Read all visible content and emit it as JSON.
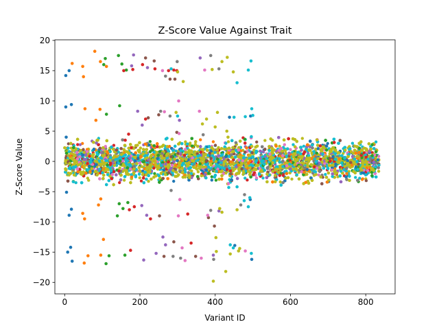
{
  "chart_data": {
    "type": "scatter",
    "title": "Z-Score Value Against Trait",
    "xlabel": "Variant ID",
    "ylabel": "Z-Score Value",
    "xlim": [
      -26,
      878
    ],
    "ylim": [
      -21.9,
      20.1
    ],
    "x_ticks": [
      0,
      200,
      400,
      600,
      800
    ],
    "x_tick_labels": [
      "0",
      "200",
      "400",
      "600",
      "800"
    ],
    "y_ticks": [
      -20,
      -15,
      -10,
      -5,
      0,
      5,
      10,
      15,
      20
    ],
    "y_tick_labels": [
      "−20",
      "−15",
      "−10",
      "−5",
      "0",
      "5",
      "10",
      "15",
      "20"
    ],
    "grid": false,
    "legend": "none",
    "colors": [
      "#1f77b4",
      "#ff7f0e",
      "#2ca02c",
      "#d62728",
      "#9467bd",
      "#8c564b",
      "#e377c2",
      "#7f7f7f",
      "#bcbd22",
      "#17becf"
    ],
    "dense_band": {
      "description": "thousands of overlapping points from many series",
      "x_range": [
        0,
        835
      ],
      "y_range": [
        -4,
        4
      ],
      "approx_point_count": 9000
    },
    "series": [
      {
        "points": [
          [
            3,
            14.2
          ],
          [
            3,
            9.0
          ],
          [
            4,
            4.0
          ],
          [
            12,
            15.0
          ],
          [
            18,
            9.4
          ],
          [
            18,
            -7.9
          ],
          [
            12,
            -8.9
          ],
          [
            5,
            -5.1
          ],
          [
            8,
            -15.0
          ],
          [
            16,
            -14.2
          ],
          [
            20,
            -16.5
          ],
          [
            494,
            7.5
          ],
          [
            493,
            -6.3
          ],
          [
            497,
            -16.2
          ],
          [
            438,
            7.3
          ],
          [
            452,
            -13.9
          ]
        ]
      },
      {
        "points": [
          [
            20,
            16.2
          ],
          [
            48,
            15.7
          ],
          [
            50,
            14.0
          ],
          [
            54,
            8.7
          ],
          [
            48,
            -8.6
          ],
          [
            53,
            -9.5
          ],
          [
            80,
            18.2
          ],
          [
            83,
            6.8
          ],
          [
            94,
            8.6
          ],
          [
            95,
            16.5
          ],
          [
            90,
            -7.2
          ],
          [
            96,
            -6.2
          ],
          [
            52,
            -16.8
          ],
          [
            62,
            -15.6
          ],
          [
            96,
            -15.5
          ],
          [
            103,
            -12.9
          ],
          [
            111,
            15.7
          ]
        ]
      },
      {
        "points": [
          [
            104,
            16.0
          ],
          [
            108,
            17.0
          ],
          [
            111,
            7.8
          ],
          [
            110,
            -16.9
          ],
          [
            118,
            -15.6
          ],
          [
            143,
            17.5
          ],
          [
            146,
            9.2
          ],
          [
            140,
            -9.0
          ],
          [
            145,
            -7.0
          ],
          [
            152,
            16.1
          ],
          [
            164,
            15.1
          ],
          [
            155,
            -7.8
          ],
          [
            160,
            -15.5
          ],
          [
            168,
            -6.8
          ]
        ]
      },
      {
        "points": [
          [
            157,
            15.0
          ],
          [
            161,
            3.5
          ],
          [
            170,
            4.5
          ],
          [
            172,
            -8.0
          ],
          [
            175,
            -14.7
          ],
          [
            181,
            15.2
          ],
          [
            185,
            -7.5
          ],
          [
            207,
            16.0
          ],
          [
            215,
            7.0
          ],
          [
            228,
            -9.5
          ],
          [
            240,
            15.3
          ],
          [
            276,
            15.0
          ],
          [
            290,
            15.1
          ],
          [
            298,
            15.0
          ],
          [
            327,
            -8.7
          ],
          [
            336,
            -13.5
          ]
        ]
      },
      {
        "points": [
          [
            178,
            15.8
          ],
          [
            183,
            17.6
          ],
          [
            194,
            8.3
          ],
          [
            206,
            6.0
          ],
          [
            205,
            -7.3
          ],
          [
            210,
            -16.3
          ],
          [
            218,
            -8.9
          ],
          [
            220,
            15.5
          ],
          [
            243,
            -15.2
          ],
          [
            261,
            -12.5
          ],
          [
            268,
            -13.8
          ],
          [
            305,
            6.8
          ],
          [
            360,
            17.1
          ],
          [
            395,
            -15.5
          ],
          [
            410,
            -8.2
          ]
        ]
      },
      {
        "points": [
          [
            215,
            17.1
          ],
          [
            222,
            7.2
          ],
          [
            238,
            16.6
          ],
          [
            250,
            7.7
          ],
          [
            252,
            -9.0
          ],
          [
            264,
            -15.7
          ],
          [
            280,
            13.6
          ],
          [
            290,
            -13.3
          ],
          [
            293,
            13.6
          ],
          [
            298,
            4.8
          ],
          [
            348,
            -15.7
          ],
          [
            382,
            -9.3
          ],
          [
            398,
            -10.7
          ]
        ]
      },
      {
        "points": [
          [
            260,
            15.0
          ],
          [
            265,
            8.2
          ],
          [
            303,
            10.0
          ],
          [
            304,
            4.6
          ],
          [
            306,
            -6.3
          ],
          [
            302,
            -9.0
          ],
          [
            312,
            -14.3
          ],
          [
            320,
            -16.4
          ],
          [
            358,
            8.3
          ],
          [
            363,
            -16.0
          ],
          [
            372,
            15.1
          ],
          [
            380,
            -8.9
          ],
          [
            480,
            -14.8
          ]
        ]
      },
      {
        "points": [
          [
            255,
            8.3
          ],
          [
            268,
            14.1
          ],
          [
            280,
            7.5
          ],
          [
            283,
            -4.8
          ],
          [
            288,
            -15.7
          ],
          [
            299,
            16.5
          ],
          [
            308,
            -16.0
          ],
          [
            368,
            4.4
          ],
          [
            388,
            -8.1
          ],
          [
            388,
            17.5
          ],
          [
            396,
            -16.2
          ],
          [
            410,
            15.3
          ],
          [
            455,
            3.1
          ],
          [
            468,
            -7.2
          ],
          [
            478,
            -5.5
          ]
        ]
      },
      {
        "points": [
          [
            296,
            8.1
          ],
          [
            300,
            14.8
          ],
          [
            315,
            13.2
          ],
          [
            366,
            6.2
          ],
          [
            377,
            7.0
          ],
          [
            392,
            15.2
          ],
          [
            400,
            5.7
          ],
          [
            402,
            -12.6
          ],
          [
            412,
            -7.8
          ],
          [
            418,
            -8.4
          ],
          [
            440,
            -15.3
          ],
          [
            448,
            14.8
          ],
          [
            458,
            -8.0
          ],
          [
            462,
            -14.8
          ],
          [
            465,
            -14.4
          ],
          [
            432,
            17.2
          ],
          [
            395,
            -19.8
          ],
          [
            403,
            -14.9
          ],
          [
            406,
            8.1
          ],
          [
            418,
            16.5
          ],
          [
            428,
            -18.2
          ],
          [
            431,
            5.0
          ],
          [
            434,
            4.0
          ]
        ]
      },
      {
        "points": [
          [
            283,
            15.3
          ],
          [
            300,
            7.5
          ],
          [
            450,
            7.3
          ],
          [
            458,
            13.0
          ],
          [
            480,
            7.4
          ],
          [
            488,
            15.1
          ],
          [
            495,
            16.6
          ],
          [
            497,
            8.7
          ],
          [
            500,
            7.6
          ],
          [
            496,
            -15.2
          ],
          [
            477,
            -6.5
          ],
          [
            488,
            -7.5
          ],
          [
            492,
            -6.0
          ],
          [
            448,
            -14.3
          ],
          [
            440,
            -13.8
          ],
          [
            436,
            -4.3
          ],
          [
            458,
            -4.2
          ],
          [
            496,
            4.1
          ]
        ]
      }
    ]
  }
}
